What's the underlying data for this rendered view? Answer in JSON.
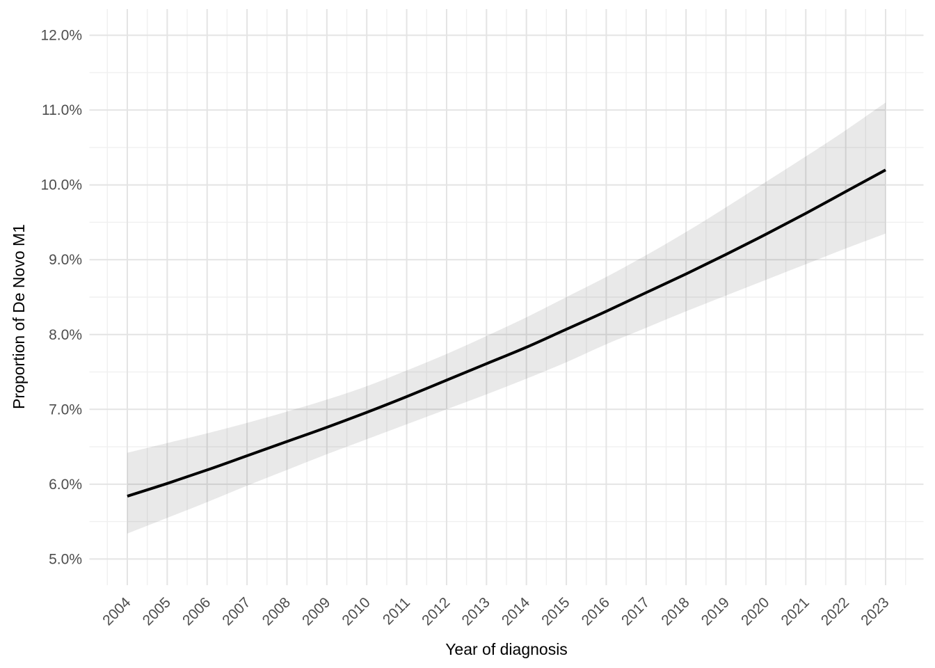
{
  "chart_data": {
    "type": "line",
    "title": "",
    "xlabel": "Year of diagnosis",
    "ylabel": "Proportion of De Novo M1",
    "legend": "none",
    "grid": true,
    "x": [
      2004,
      2005,
      2006,
      2007,
      2008,
      2009,
      2010,
      2011,
      2012,
      2013,
      2014,
      2015,
      2016,
      2017,
      2018,
      2019,
      2020,
      2021,
      2022,
      2023
    ],
    "x_tick_labels": [
      "2004",
      "2005",
      "2006",
      "2007",
      "2008",
      "2009",
      "2010",
      "2011",
      "2012",
      "2013",
      "2014",
      "2015",
      "2016",
      "2017",
      "2018",
      "2019",
      "2020",
      "2021",
      "2022",
      "2023"
    ],
    "series": [
      {
        "name": "smoothed-proportion-de-novo-m1",
        "unit": "percent",
        "values": [
          5.84,
          6.01,
          6.19,
          6.38,
          6.57,
          6.76,
          6.96,
          7.17,
          7.39,
          7.61,
          7.83,
          8.07,
          8.31,
          8.56,
          8.81,
          9.07,
          9.34,
          9.62,
          9.91,
          10.2
        ]
      }
    ],
    "confidence_band": {
      "name": "95% confidence interval",
      "lower": [
        5.34,
        5.55,
        5.76,
        5.98,
        6.19,
        6.4,
        6.6,
        6.8,
        7.0,
        7.2,
        7.41,
        7.63,
        7.87,
        8.09,
        8.31,
        8.52,
        8.73,
        8.94,
        9.15,
        9.35
      ],
      "upper": [
        6.42,
        6.55,
        6.68,
        6.82,
        6.97,
        7.13,
        7.31,
        7.52,
        7.74,
        7.98,
        8.23,
        8.5,
        8.77,
        9.06,
        9.37,
        9.7,
        10.04,
        10.38,
        10.73,
        11.1
      ]
    },
    "y_ticks": [
      5,
      6,
      7,
      8,
      9,
      10,
      11,
      12
    ],
    "y_tick_labels": [
      "5.0%",
      "6.0%",
      "7.0%",
      "8.0%",
      "9.0%",
      "10.0%",
      "11.0%",
      "12.0%"
    ],
    "y_minor_ticks": [
      5.5,
      6.5,
      7.5,
      8.5,
      9.5,
      10.5,
      11.5
    ],
    "x_minor_ticks": [
      2003.5,
      2004.5,
      2005.5,
      2006.5,
      2007.5,
      2008.5,
      2009.5,
      2010.5,
      2011.5,
      2012.5,
      2013.5,
      2014.5,
      2015.5,
      2016.5,
      2017.5,
      2018.5,
      2019.5,
      2020.5,
      2021.5,
      2022.5,
      2023.5
    ],
    "xlim": [
      2003.05,
      2023.95
    ],
    "ylim": [
      4.65,
      12.35
    ],
    "colors": {
      "line": "#000000",
      "ribbon_fill": "rgba(0,0,0,0.085)",
      "grid_major": "#e4e4e4",
      "grid_minor": "#f0f0f0",
      "tick_label": "#4d4d4d",
      "axis_title": "#000000",
      "background": "#ffffff"
    }
  }
}
